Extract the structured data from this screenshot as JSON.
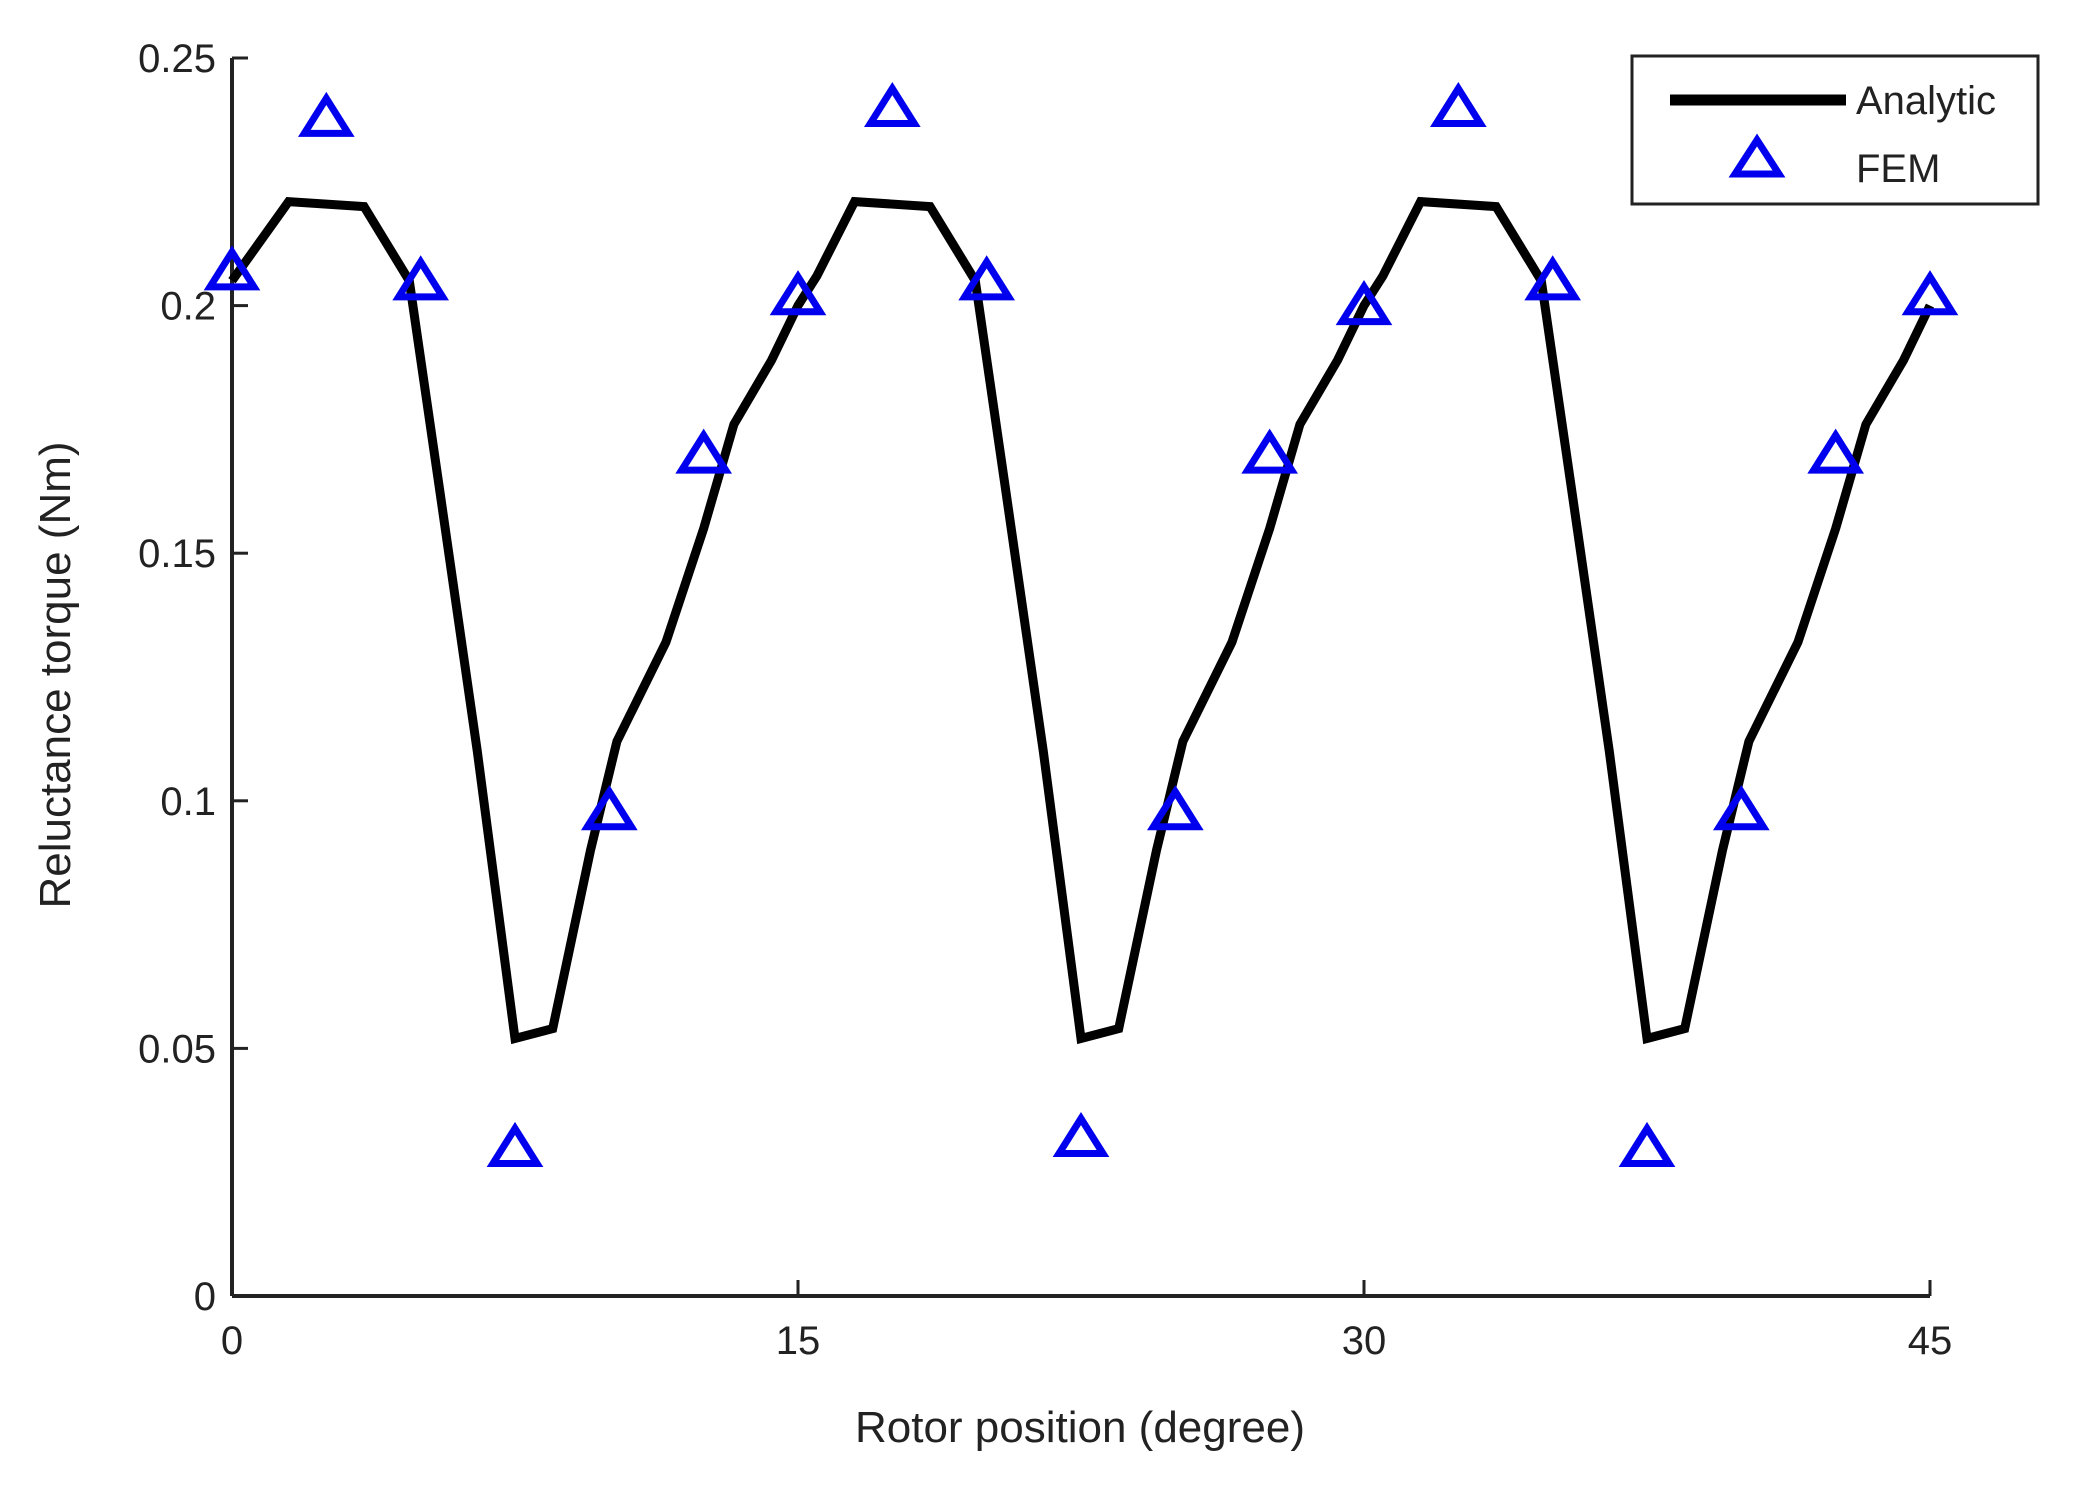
{
  "chart_data": {
    "type": "line",
    "title": "",
    "xlabel": "Rotor position (degree)",
    "ylabel": "Reluctance torque (Nm)",
    "xlim": [
      0,
      45
    ],
    "ylim": [
      0,
      0.25
    ],
    "xticks": [
      0,
      15,
      30,
      45
    ],
    "xtick_labels": [
      "0",
      "15",
      "30",
      "45"
    ],
    "yticks": [
      0,
      0.05,
      0.1,
      0.15,
      0.2,
      0.25
    ],
    "ytick_labels": [
      "0",
      "0.05",
      "0.1",
      "0.15",
      "0.2",
      "0.25"
    ],
    "grid": false,
    "legend_position": "top-right",
    "series": [
      {
        "name": "Analytic",
        "style": "line",
        "color": "#000000",
        "x": [
          0,
          1.5,
          3.5,
          4.7,
          5.5,
          6.5,
          7.5,
          8.5,
          9.5,
          10.2,
          11.5,
          12.5,
          13.3,
          14.3,
          15.0,
          15.5,
          16.5,
          18.5,
          19.7,
          20.5,
          21.5,
          22.5,
          23.5,
          24.5,
          25.2,
          26.5,
          27.5,
          28.3,
          29.3,
          30.0,
          30.5,
          31.5,
          33.5,
          34.7,
          35.5,
          36.5,
          37.5,
          38.5,
          39.5,
          40.2,
          41.5,
          42.5,
          43.3,
          44.3,
          45.0
        ],
        "y": [
          0.205,
          0.221,
          0.22,
          0.205,
          0.163,
          0.11,
          0.052,
          0.054,
          0.09,
          0.112,
          0.132,
          0.155,
          0.176,
          0.189,
          0.2,
          0.206,
          0.221,
          0.22,
          0.205,
          0.163,
          0.11,
          0.052,
          0.054,
          0.09,
          0.112,
          0.132,
          0.155,
          0.176,
          0.189,
          0.2,
          0.206,
          0.221,
          0.22,
          0.205,
          0.163,
          0.11,
          0.052,
          0.054,
          0.09,
          0.112,
          0.132,
          0.155,
          0.176,
          0.189,
          0.2
        ]
      },
      {
        "name": "FEM",
        "style": "marker",
        "marker": "triangle-up",
        "color": "#0000ee",
        "x": [
          0,
          2.5,
          5,
          7.5,
          10,
          12.5,
          15,
          17.5,
          20,
          22.5,
          25,
          27.5,
          30,
          32.5,
          35,
          37.5,
          40,
          42.5,
          45
        ],
        "y": [
          0.207,
          0.238,
          0.205,
          0.03,
          0.098,
          0.17,
          0.202,
          0.24,
          0.205,
          0.032,
          0.098,
          0.17,
          0.2,
          0.24,
          0.205,
          0.03,
          0.098,
          0.17,
          0.202
        ]
      }
    ]
  }
}
